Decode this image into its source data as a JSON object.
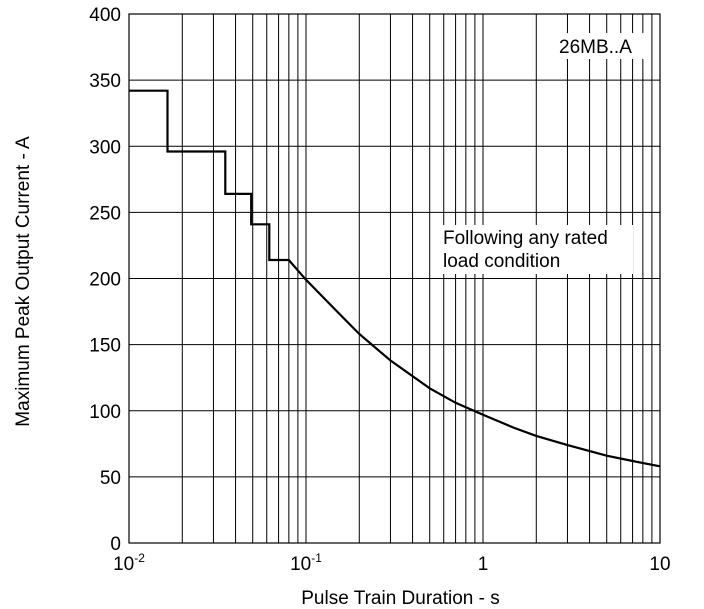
{
  "chart_data": {
    "type": "line",
    "xlabel": "Pulse Train Duration - s",
    "ylabel": "Maximum Peak Output Current - A",
    "x_scale": "log",
    "xlim": [
      0.01,
      10
    ],
    "ylim": [
      0,
      400
    ],
    "grid": true,
    "x_ticks": [
      {
        "base": "10",
        "exp": "-2"
      },
      {
        "base": "10",
        "exp": "-1"
      },
      {
        "base": "1",
        "exp": ""
      },
      {
        "base": "10",
        "exp": ""
      }
    ],
    "y_ticks": [
      "0",
      "50",
      "100",
      "150",
      "200",
      "250",
      "300",
      "350",
      "400"
    ],
    "annotations": {
      "part": "26MB..A",
      "condition_line1": "Following any rated",
      "condition_line2": "load condition"
    },
    "series": [
      {
        "x": [
          0.01,
          0.0165,
          0.0165,
          0.035,
          0.035,
          0.049,
          0.049,
          0.062,
          0.062,
          0.08,
          0.1,
          0.15,
          0.2,
          0.3,
          0.5,
          0.7,
          1,
          1.5,
          2,
          3,
          5,
          7,
          10
        ],
        "y": [
          342,
          342,
          296,
          296,
          264,
          264,
          241,
          241,
          214,
          214,
          199,
          175,
          158,
          138,
          117,
          106,
          97,
          87,
          81,
          74,
          66,
          62,
          58
        ]
      }
    ]
  }
}
